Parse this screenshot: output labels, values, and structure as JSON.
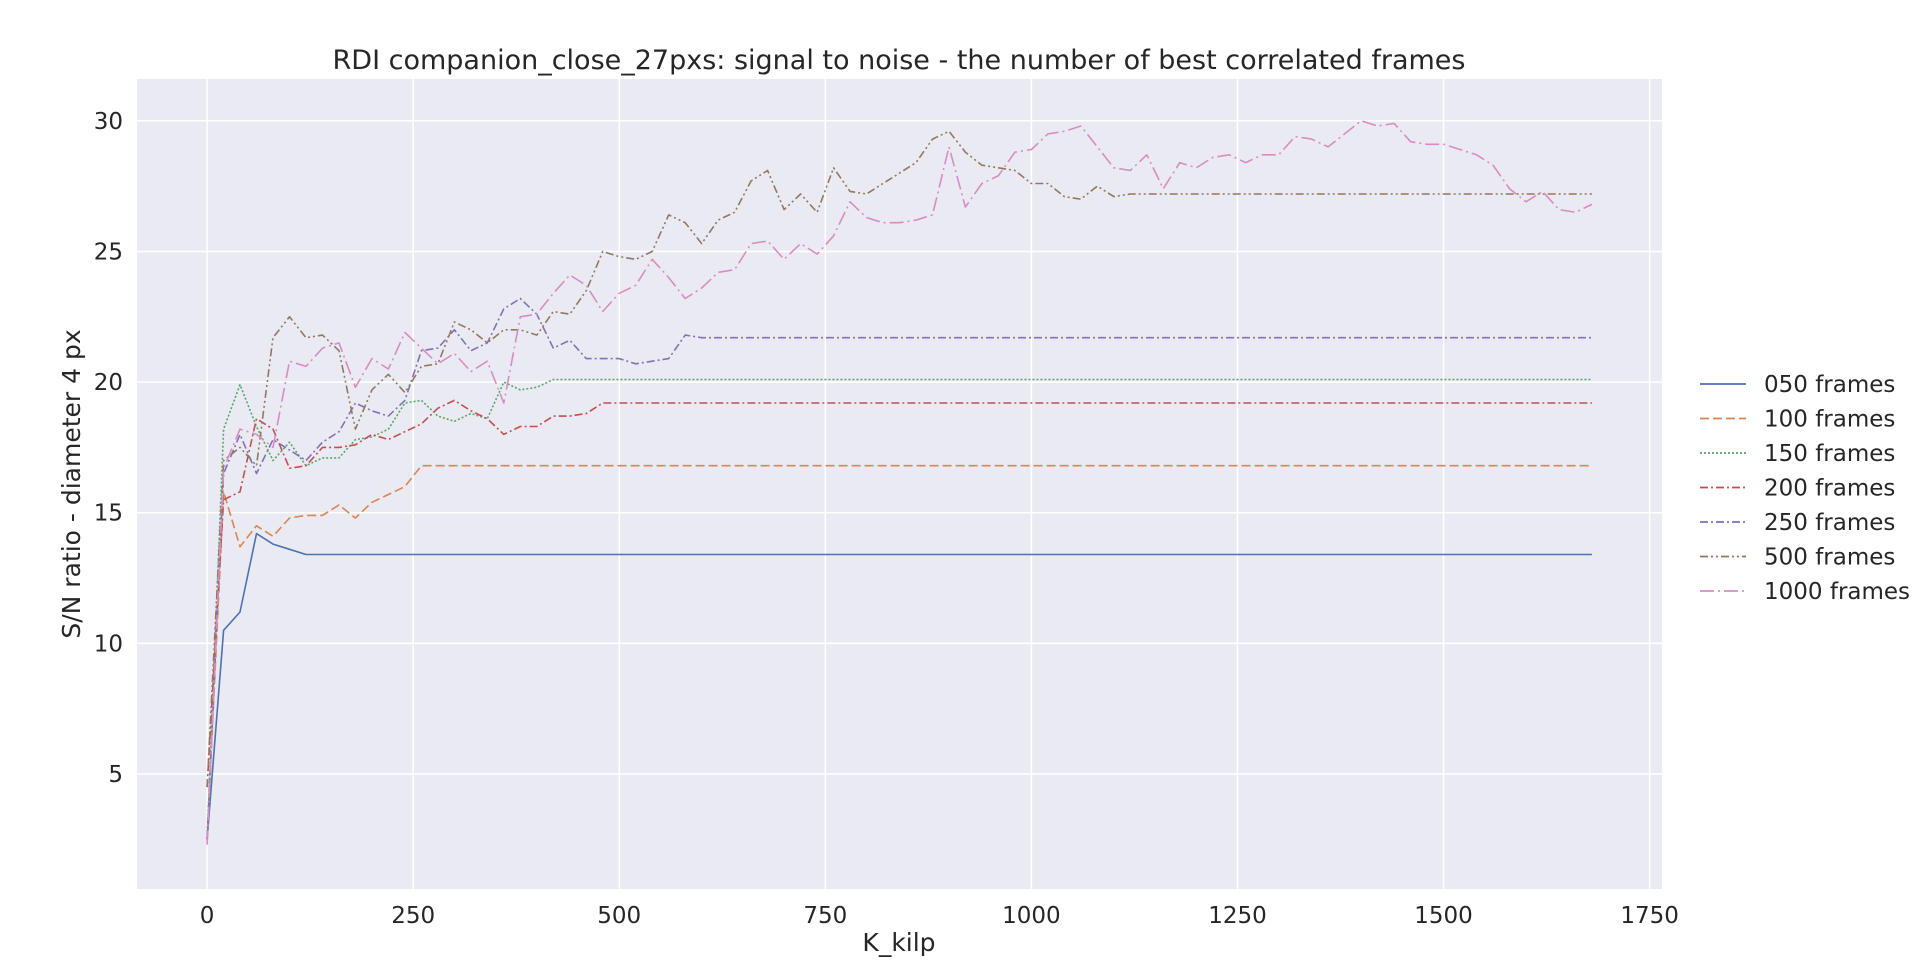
{
  "chart_data": {
    "type": "line",
    "title": "RDI companion_close_27pxs: signal to noise - the number of best correlated frames",
    "xlabel": "K_kilp",
    "ylabel": "S/N ratio - diameter 4 px",
    "xlim": [
      -85,
      1765
    ],
    "ylim": [
      0.6,
      31.6
    ],
    "xticks": [
      0,
      250,
      500,
      750,
      1000,
      1250,
      1500,
      1750
    ],
    "yticks": [
      5,
      10,
      15,
      20,
      25,
      30
    ],
    "grid": true,
    "background": "#eaeaf2",
    "legend_position": "right",
    "series": [
      {
        "name": "050 frames",
        "color": "#4c72b0",
        "dash": "solid",
        "x": [
          0,
          20,
          40,
          60,
          80,
          100,
          120,
          140,
          200,
          400,
          800,
          1200,
          1680
        ],
        "y": [
          2.5,
          10.5,
          11.2,
          14.2,
          13.8,
          13.6,
          13.4,
          13.4,
          13.4,
          13.4,
          13.4,
          13.4,
          13.4
        ]
      },
      {
        "name": "100 frames",
        "color": "#dd8452",
        "dash": "dashed",
        "x": [
          0,
          20,
          40,
          60,
          80,
          100,
          120,
          140,
          160,
          180,
          200,
          220,
          240,
          260,
          300,
          500,
          1000,
          1680
        ],
        "y": [
          2.5,
          15.8,
          13.7,
          14.5,
          14.1,
          14.8,
          14.9,
          14.9,
          15.3,
          14.8,
          15.4,
          15.7,
          16.0,
          16.8,
          16.8,
          16.8,
          16.8,
          16.8
        ]
      },
      {
        "name": "150 frames",
        "color": "#55a868",
        "dash": "dotted",
        "x": [
          0,
          20,
          40,
          60,
          80,
          100,
          120,
          140,
          160,
          180,
          200,
          220,
          240,
          260,
          280,
          300,
          320,
          340,
          360,
          380,
          400,
          420,
          500,
          1000,
          1680
        ],
        "y": [
          2.5,
          18.2,
          19.9,
          18.3,
          17.0,
          17.7,
          16.8,
          17.1,
          17.1,
          17.8,
          17.9,
          18.2,
          19.2,
          19.3,
          18.7,
          18.5,
          18.8,
          18.6,
          20.0,
          19.7,
          19.8,
          20.1,
          20.1,
          20.1,
          20.1
        ]
      },
      {
        "name": "200 frames",
        "color": "#c44e52",
        "dash": "dashdot",
        "x": [
          0,
          20,
          40,
          60,
          80,
          100,
          120,
          140,
          160,
          180,
          200,
          220,
          240,
          260,
          280,
          300,
          320,
          340,
          360,
          380,
          400,
          420,
          440,
          460,
          480,
          500,
          1000,
          1680
        ],
        "y": [
          4.5,
          15.5,
          15.8,
          18.6,
          18.2,
          16.7,
          16.8,
          17.5,
          17.5,
          17.6,
          18.0,
          17.8,
          18.1,
          18.4,
          19.0,
          19.3,
          18.9,
          18.6,
          18.0,
          18.3,
          18.3,
          18.7,
          18.7,
          18.8,
          19.2,
          19.2,
          19.2,
          19.2
        ]
      },
      {
        "name": "250 frames",
        "color": "#8172b3",
        "dash": "dashdot",
        "x": [
          0,
          20,
          40,
          60,
          80,
          100,
          120,
          140,
          160,
          180,
          200,
          220,
          240,
          260,
          280,
          300,
          320,
          340,
          360,
          380,
          400,
          420,
          440,
          460,
          480,
          500,
          520,
          540,
          560,
          580,
          600,
          1000,
          1680
        ],
        "y": [
          2.5,
          16.5,
          18.0,
          16.5,
          17.8,
          17.4,
          17.0,
          17.7,
          18.1,
          19.2,
          18.9,
          18.7,
          19.3,
          21.2,
          21.3,
          22.0,
          21.2,
          21.5,
          22.8,
          23.2,
          22.6,
          21.3,
          21.6,
          20.9,
          20.9,
          20.9,
          20.7,
          20.8,
          20.9,
          21.8,
          21.7,
          21.7,
          21.7
        ]
      },
      {
        "name": "500 frames",
        "color": "#937860",
        "dash": "dashdotdot",
        "x": [
          0,
          20,
          40,
          60,
          80,
          100,
          120,
          140,
          160,
          180,
          200,
          220,
          240,
          260,
          280,
          300,
          320,
          340,
          360,
          380,
          400,
          420,
          440,
          460,
          480,
          500,
          520,
          540,
          560,
          580,
          600,
          620,
          640,
          660,
          680,
          700,
          720,
          740,
          760,
          780,
          800,
          820,
          840,
          860,
          880,
          900,
          920,
          940,
          960,
          980,
          1000,
          1020,
          1040,
          1060,
          1080,
          1100,
          1120,
          1140,
          1200,
          1400,
          1680
        ],
        "y": [
          4.5,
          17.0,
          17.5,
          16.8,
          21.7,
          22.5,
          21.7,
          21.8,
          21.2,
          18.2,
          19.7,
          20.3,
          19.6,
          20.6,
          20.7,
          22.3,
          22.0,
          21.5,
          22.0,
          22.0,
          21.8,
          22.7,
          22.6,
          23.5,
          25.0,
          24.8,
          24.7,
          25.0,
          26.4,
          26.1,
          25.3,
          26.2,
          26.5,
          27.7,
          28.1,
          26.6,
          27.2,
          26.5,
          28.2,
          27.3,
          27.2,
          27.6,
          28.0,
          28.4,
          29.3,
          29.6,
          28.8,
          28.3,
          28.2,
          28.1,
          27.6,
          27.6,
          27.1,
          27.0,
          27.5,
          27.1,
          27.2,
          27.2,
          27.2,
          27.2,
          27.2
        ]
      },
      {
        "name": "1000 frames",
        "color": "#da8bc3",
        "dash": "longdash",
        "x": [
          0,
          20,
          40,
          60,
          80,
          100,
          120,
          140,
          160,
          180,
          200,
          220,
          240,
          260,
          280,
          300,
          320,
          340,
          360,
          380,
          400,
          420,
          440,
          460,
          480,
          500,
          520,
          540,
          560,
          580,
          600,
          620,
          640,
          660,
          680,
          700,
          720,
          740,
          760,
          780,
          800,
          820,
          840,
          860,
          880,
          900,
          920,
          940,
          960,
          980,
          1000,
          1020,
          1040,
          1060,
          1080,
          1100,
          1120,
          1140,
          1160,
          1180,
          1200,
          1220,
          1240,
          1260,
          1280,
          1300,
          1320,
          1340,
          1360,
          1380,
          1400,
          1420,
          1440,
          1460,
          1480,
          1500,
          1520,
          1540,
          1560,
          1580,
          1600,
          1620,
          1640,
          1660,
          1680
        ],
        "y": [
          2.3,
          16.7,
          18.2,
          18.0,
          17.5,
          20.8,
          20.6,
          21.3,
          21.5,
          19.8,
          20.9,
          20.5,
          21.9,
          21.3,
          20.7,
          21.1,
          20.4,
          20.8,
          19.2,
          22.5,
          22.6,
          23.4,
          24.1,
          23.7,
          22.7,
          23.4,
          23.7,
          24.7,
          24.0,
          23.2,
          23.6,
          24.2,
          24.3,
          25.3,
          25.4,
          24.7,
          25.3,
          24.9,
          25.6,
          26.9,
          26.3,
          26.1,
          26.1,
          26.2,
          26.4,
          29.0,
          26.7,
          27.6,
          27.9,
          28.8,
          28.9,
          29.5,
          29.6,
          29.8,
          29.0,
          28.2,
          28.1,
          28.7,
          27.4,
          28.4,
          28.2,
          28.6,
          28.7,
          28.4,
          28.7,
          28.7,
          29.4,
          29.3,
          29.0,
          29.5,
          30.0,
          29.8,
          29.9,
          29.2,
          29.1,
          29.1,
          28.9,
          28.7,
          28.3,
          27.4,
          26.9,
          27.3,
          26.6,
          26.5,
          26.8
        ]
      }
    ]
  }
}
